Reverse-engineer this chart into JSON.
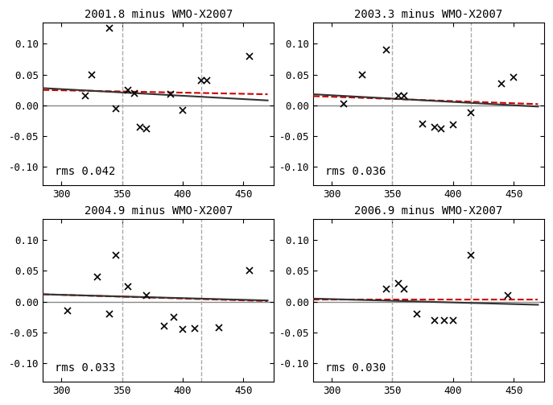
{
  "panels": [
    {
      "title": "2001.8 minus WMO-X2007",
      "rms": "rms 0.042",
      "scatter_x": [
        320,
        325,
        340,
        345,
        355,
        360,
        365,
        370,
        390,
        400,
        415,
        420,
        455
      ],
      "scatter_y": [
        0.015,
        0.05,
        0.125,
        -0.005,
        0.025,
        0.02,
        -0.035,
        -0.038,
        0.018,
        -0.008,
        0.04,
        0.04,
        0.08
      ],
      "fit_x": [
        285,
        470
      ],
      "fit_y": [
        0.028,
        0.008
      ],
      "redline_x": [
        285,
        470
      ],
      "redline_y": [
        0.025,
        0.018
      ]
    },
    {
      "title": "2003.3 minus WMO-X2007",
      "rms": "rms 0.036",
      "scatter_x": [
        310,
        325,
        345,
        355,
        360,
        375,
        385,
        390,
        400,
        415,
        440,
        450
      ],
      "scatter_y": [
        0.002,
        0.05,
        0.09,
        0.015,
        0.015,
        -0.03,
        -0.035,
        -0.038,
        -0.032,
        -0.012,
        0.035,
        0.045
      ],
      "fit_x": [
        285,
        470
      ],
      "fit_y": [
        0.018,
        -0.002
      ],
      "redline_x": [
        285,
        470
      ],
      "redline_y": [
        0.015,
        0.002
      ]
    },
    {
      "title": "2004.9 minus WMO-X2007",
      "rms": "rms 0.033",
      "scatter_x": [
        305,
        330,
        340,
        345,
        355,
        370,
        385,
        393,
        400,
        410,
        430,
        455
      ],
      "scatter_y": [
        -0.015,
        0.04,
        -0.02,
        0.075,
        0.025,
        0.01,
        -0.04,
        -0.025,
        -0.045,
        -0.043,
        -0.042,
        0.05
      ],
      "fit_x": [
        285,
        470
      ],
      "fit_y": [
        0.012,
        0.002
      ],
      "redline_x": [
        285,
        470
      ],
      "redline_y": [
        0.012,
        0.001
      ]
    },
    {
      "title": "2006.9 minus WMO-X2007",
      "rms": "rms 0.030",
      "scatter_x": [
        345,
        355,
        360,
        370,
        385,
        393,
        400,
        415,
        445
      ],
      "scatter_y": [
        0.02,
        0.03,
        0.02,
        -0.02,
        -0.03,
        -0.03,
        -0.03,
        0.075,
        0.01
      ],
      "fit_x": [
        285,
        470
      ],
      "fit_y": [
        0.005,
        -0.005
      ],
      "redline_x": [
        285,
        470
      ],
      "redline_y": [
        0.003,
        0.003
      ]
    }
  ],
  "vlines": [
    350,
    415
  ],
  "xlim": [
    285,
    475
  ],
  "ylim": [
    -0.13,
    0.135
  ],
  "yticks": [
    -0.1,
    -0.05,
    0.0,
    0.05,
    0.1
  ],
  "xticks": [
    300,
    350,
    400,
    450
  ],
  "bg_color": "#ffffff",
  "scatter_color": "#000000",
  "fit_color": "#333333",
  "red_color": "#cc0000",
  "vline_color": "#aaaaaa",
  "zero_line_color": "#888888"
}
